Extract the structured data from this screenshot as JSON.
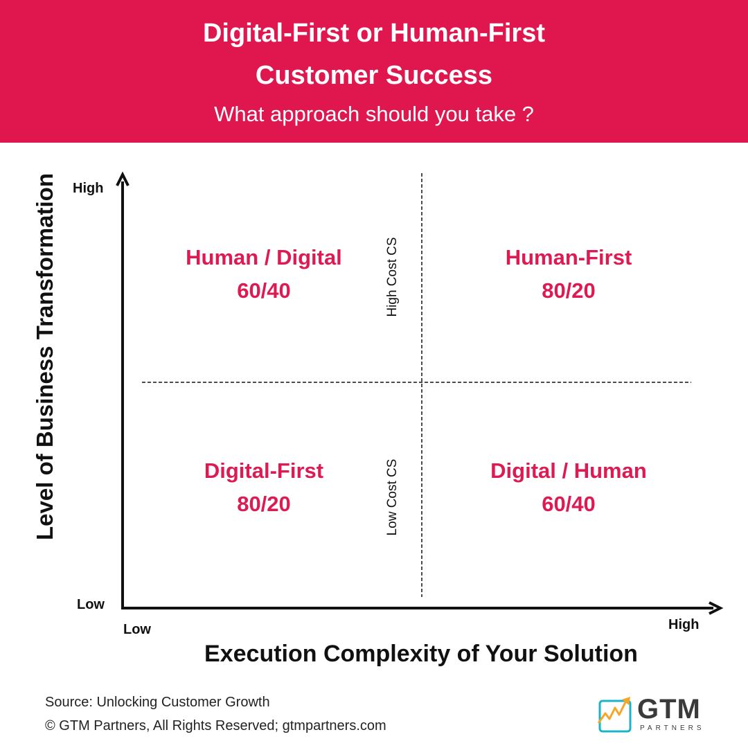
{
  "header": {
    "title_line1": "Digital-First or Human-First",
    "title_line2": "Customer Success",
    "subtitle": "What approach should you take ?"
  },
  "axes": {
    "y_label": "Level of Business Transformation",
    "y_high": "High",
    "y_low": "Low",
    "x_label": "Execution Complexity of Your Solution",
    "x_low": "Low",
    "x_high": "High"
  },
  "dividers": {
    "upper_label": "High Cost CS",
    "lower_label": "Low Cost CS"
  },
  "quadrants": {
    "top_left": {
      "name": "Human / Digital",
      "ratio": "60/40"
    },
    "top_right": {
      "name": "Human-First",
      "ratio": "80/20"
    },
    "bottom_left": {
      "name": "Digital-First",
      "ratio": "80/20"
    },
    "bottom_right": {
      "name": "Digital / Human",
      "ratio": "60/40"
    }
  },
  "footer": {
    "source": "Source: Unlocking Customer Growth",
    "copyright": "© GTM Partners, All Rights Reserved; gtmpartners.com"
  },
  "logo": {
    "text": "GTM",
    "subtext": "PARTNERS"
  },
  "colors": {
    "brand": "#e0174f",
    "quadrant_text": "#dd1a52",
    "logo_teal": "#1bb3c9",
    "logo_orange": "#f6a623"
  }
}
